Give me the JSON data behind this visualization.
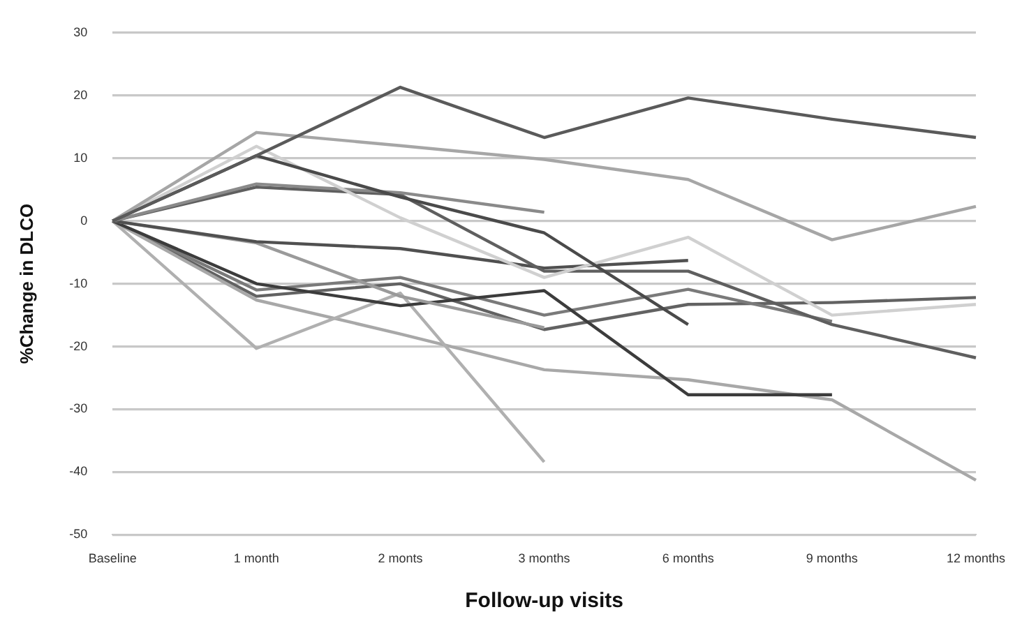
{
  "chart_data": {
    "type": "line",
    "xlabel": "Follow-up visits",
    "ylabel": "%Change in DLCO",
    "categories": [
      "Baseline",
      "1 month",
      "2 monts",
      "3 months",
      "6 months",
      "9 months",
      "12 months"
    ],
    "series": [
      {
        "color": "#5a5a5a",
        "values": [
          0,
          10.4,
          21.3,
          13.3,
          19.6,
          16.2,
          13.3
        ]
      },
      {
        "color": "#a6a6a6",
        "values": [
          0,
          14.1,
          12,
          9.8,
          6.6,
          -3,
          2.3
        ]
      },
      {
        "color": "#4a4a4a",
        "values": [
          0,
          10.4,
          3.8,
          -1.9,
          -16.5,
          null,
          null
        ]
      },
      {
        "color": "#d0d0d0",
        "values": [
          0,
          11.9,
          0.5,
          -9,
          -2.6,
          -15,
          -13.3
        ]
      },
      {
        "color": "#8a8a8a",
        "values": [
          0,
          5.9,
          4.5,
          1.4,
          null,
          null,
          null
        ]
      },
      {
        "color": "#5f5f5f",
        "values": [
          0,
          5.4,
          4.2,
          -8,
          -8,
          -16.5,
          -21.8
        ]
      },
      {
        "color": "#505050",
        "values": [
          0,
          -3.3,
          -4.4,
          -7.5,
          -6.3,
          null,
          null
        ]
      },
      {
        "color": "#9a9a9a",
        "values": [
          0,
          -3.5,
          -12,
          -17,
          null,
          null,
          null
        ]
      },
      {
        "color": "#3c3c3c",
        "values": [
          0,
          -10,
          -13.5,
          -11.1,
          -27.7,
          -27.7,
          null
        ]
      },
      {
        "color": "#b0b0b0",
        "values": [
          0,
          -20.3,
          -11.5,
          -38.4,
          null,
          null,
          null
        ]
      },
      {
        "color": "#a8a8a8",
        "values": [
          0,
          -12.6,
          -18,
          -23.7,
          -25.3,
          -28.5,
          -41.3
        ]
      },
      {
        "color": "#7a7a7a",
        "values": [
          0,
          -11,
          -9,
          -15,
          -10.9,
          -16,
          null
        ]
      },
      {
        "color": "#626262",
        "values": [
          0,
          -12,
          -10,
          -17.3,
          -13.3,
          -13,
          -12.2
        ]
      }
    ],
    "ylim": [
      -50,
      30
    ],
    "yticks": [
      -50,
      -40,
      -30,
      -20,
      -10,
      0,
      10,
      20,
      30
    ],
    "grid": "y",
    "legend": false,
    "marker": "none",
    "line_style": "solid"
  }
}
